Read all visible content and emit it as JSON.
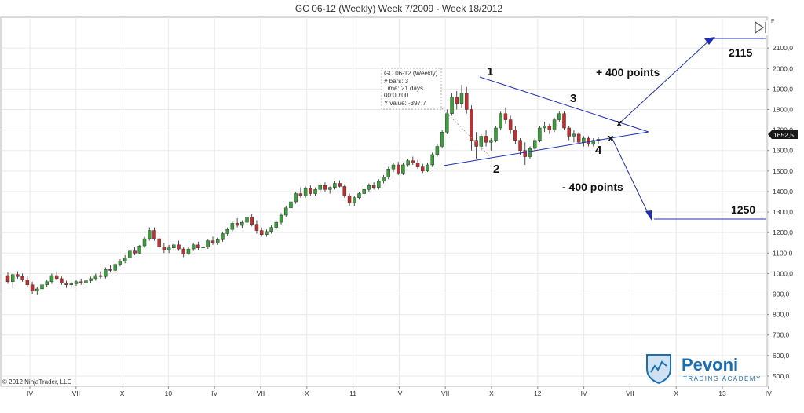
{
  "chart_data": {
    "type": "candlestick",
    "title": "GC 06-12 (Weekly)  Week 7/2009 - Week 18/2012",
    "y_axis": {
      "range": [
        450,
        2250
      ],
      "ticks": [
        "500,0",
        "600,0",
        "700,0",
        "800,0",
        "900,0",
        "1000,0",
        "1100,0",
        "1200,0",
        "1300,0",
        "1400,0",
        "1500,0",
        "1600,0",
        "1700,0",
        "1800,0",
        "1900,0",
        "2000,0",
        "2100,0"
      ],
      "tick_values": [
        500,
        600,
        700,
        800,
        900,
        1000,
        1100,
        1200,
        1300,
        1400,
        1500,
        1600,
        1700,
        1800,
        1900,
        2000,
        2100
      ]
    },
    "x_axis": {
      "tick_labels": [
        "IV",
        "VII",
        "X",
        "10",
        "IV",
        "VII",
        "X",
        "11",
        "IV",
        "VII",
        "X",
        "12",
        "IV",
        "VII",
        "X",
        "13",
        "IV"
      ]
    },
    "last_price_label": "1652,5",
    "candles_ohlc": [
      [
        990,
        1005,
        950,
        960
      ],
      [
        960,
        1000,
        930,
        995
      ],
      [
        995,
        1010,
        975,
        985
      ],
      [
        985,
        1000,
        960,
        970
      ],
      [
        970,
        985,
        935,
        945
      ],
      [
        945,
        960,
        900,
        915
      ],
      [
        915,
        935,
        895,
        925
      ],
      [
        925,
        950,
        915,
        945
      ],
      [
        945,
        970,
        935,
        960
      ],
      [
        960,
        1000,
        950,
        990
      ],
      [
        990,
        1010,
        970,
        975
      ],
      [
        975,
        985,
        945,
        955
      ],
      [
        955,
        965,
        930,
        945
      ],
      [
        945,
        960,
        935,
        950
      ],
      [
        950,
        970,
        940,
        960
      ],
      [
        960,
        975,
        945,
        955
      ],
      [
        955,
        975,
        945,
        965
      ],
      [
        965,
        985,
        955,
        975
      ],
      [
        975,
        1000,
        965,
        990
      ],
      [
        990,
        1010,
        975,
        985
      ],
      [
        985,
        1030,
        975,
        1020
      ],
      [
        1020,
        1040,
        1005,
        1015
      ],
      [
        1015,
        1050,
        1010,
        1045
      ],
      [
        1045,
        1070,
        1035,
        1060
      ],
      [
        1060,
        1090,
        1050,
        1075
      ],
      [
        1075,
        1120,
        1065,
        1110
      ],
      [
        1110,
        1130,
        1090,
        1100
      ],
      [
        1100,
        1140,
        1095,
        1135
      ],
      [
        1135,
        1180,
        1125,
        1170
      ],
      [
        1170,
        1225,
        1160,
        1210
      ],
      [
        1210,
        1225,
        1160,
        1170
      ],
      [
        1170,
        1185,
        1120,
        1130
      ],
      [
        1130,
        1150,
        1100,
        1115
      ],
      [
        1115,
        1140,
        1100,
        1125
      ],
      [
        1125,
        1150,
        1110,
        1140
      ],
      [
        1140,
        1160,
        1110,
        1120
      ],
      [
        1120,
        1130,
        1080,
        1095
      ],
      [
        1095,
        1130,
        1090,
        1120
      ],
      [
        1120,
        1150,
        1110,
        1140
      ],
      [
        1140,
        1155,
        1115,
        1125
      ],
      [
        1125,
        1140,
        1115,
        1130
      ],
      [
        1130,
        1170,
        1120,
        1160
      ],
      [
        1160,
        1180,
        1140,
        1150
      ],
      [
        1150,
        1175,
        1140,
        1165
      ],
      [
        1165,
        1205,
        1155,
        1195
      ],
      [
        1195,
        1225,
        1185,
        1215
      ],
      [
        1215,
        1255,
        1205,
        1245
      ],
      [
        1245,
        1270,
        1225,
        1235
      ],
      [
        1235,
        1260,
        1220,
        1250
      ],
      [
        1250,
        1285,
        1240,
        1275
      ],
      [
        1275,
        1290,
        1230,
        1240
      ],
      [
        1240,
        1260,
        1195,
        1210
      ],
      [
        1210,
        1225,
        1180,
        1190
      ],
      [
        1190,
        1215,
        1180,
        1205
      ],
      [
        1205,
        1235,
        1195,
        1225
      ],
      [
        1225,
        1260,
        1215,
        1250
      ],
      [
        1250,
        1295,
        1240,
        1285
      ],
      [
        1285,
        1330,
        1275,
        1320
      ],
      [
        1320,
        1360,
        1310,
        1350
      ],
      [
        1350,
        1400,
        1340,
        1390
      ],
      [
        1390,
        1420,
        1370,
        1380
      ],
      [
        1380,
        1425,
        1370,
        1415
      ],
      [
        1415,
        1430,
        1380,
        1390
      ],
      [
        1390,
        1420,
        1380,
        1410
      ],
      [
        1410,
        1440,
        1395,
        1430
      ],
      [
        1430,
        1445,
        1400,
        1410
      ],
      [
        1410,
        1425,
        1390,
        1420
      ],
      [
        1420,
        1450,
        1410,
        1440
      ],
      [
        1440,
        1455,
        1420,
        1425
      ],
      [
        1425,
        1435,
        1370,
        1380
      ],
      [
        1380,
        1390,
        1330,
        1345
      ],
      [
        1345,
        1380,
        1330,
        1370
      ],
      [
        1370,
        1400,
        1360,
        1390
      ],
      [
        1390,
        1420,
        1380,
        1410
      ],
      [
        1410,
        1440,
        1400,
        1430
      ],
      [
        1430,
        1445,
        1410,
        1420
      ],
      [
        1420,
        1460,
        1410,
        1450
      ],
      [
        1450,
        1480,
        1440,
        1470
      ],
      [
        1470,
        1520,
        1460,
        1510
      ],
      [
        1510,
        1540,
        1495,
        1530
      ],
      [
        1530,
        1545,
        1480,
        1490
      ],
      [
        1490,
        1540,
        1480,
        1530
      ],
      [
        1530,
        1560,
        1520,
        1550
      ],
      [
        1550,
        1570,
        1530,
        1540
      ],
      [
        1540,
        1555,
        1510,
        1520
      ],
      [
        1520,
        1535,
        1490,
        1500
      ],
      [
        1500,
        1540,
        1495,
        1530
      ],
      [
        1530,
        1590,
        1520,
        1580
      ],
      [
        1580,
        1630,
        1570,
        1620
      ],
      [
        1620,
        1700,
        1610,
        1690
      ],
      [
        1690,
        1800,
        1680,
        1780
      ],
      [
        1780,
        1880,
        1770,
        1860
      ],
      [
        1860,
        1890,
        1800,
        1830
      ],
      [
        1830,
        1920,
        1810,
        1880
      ],
      [
        1880,
        1910,
        1780,
        1800
      ],
      [
        1800,
        1820,
        1600,
        1650
      ],
      [
        1650,
        1690,
        1560,
        1620
      ],
      [
        1620,
        1680,
        1600,
        1670
      ],
      [
        1670,
        1700,
        1620,
        1640
      ],
      [
        1640,
        1660,
        1600,
        1650
      ],
      [
        1650,
        1720,
        1640,
        1710
      ],
      [
        1710,
        1790,
        1700,
        1780
      ],
      [
        1780,
        1810,
        1730,
        1750
      ],
      [
        1750,
        1770,
        1680,
        1700
      ],
      [
        1700,
        1720,
        1630,
        1650
      ],
      [
        1650,
        1660,
        1580,
        1600
      ],
      [
        1600,
        1640,
        1530,
        1570
      ],
      [
        1570,
        1620,
        1560,
        1610
      ],
      [
        1610,
        1660,
        1600,
        1650
      ],
      [
        1650,
        1720,
        1640,
        1710
      ],
      [
        1710,
        1740,
        1690,
        1720
      ],
      [
        1720,
        1730,
        1680,
        1700
      ],
      [
        1700,
        1760,
        1690,
        1750
      ],
      [
        1750,
        1790,
        1740,
        1780
      ],
      [
        1780,
        1790,
        1700,
        1710
      ],
      [
        1710,
        1720,
        1650,
        1670
      ],
      [
        1670,
        1700,
        1640,
        1680
      ],
      [
        1680,
        1690,
        1630,
        1640
      ],
      [
        1640,
        1670,
        1620,
        1660
      ],
      [
        1660,
        1670,
        1620,
        1630
      ],
      [
        1630,
        1660,
        1620,
        1650
      ],
      [
        1650,
        1665,
        1630,
        1655
      ]
    ]
  },
  "tooltip": {
    "lines": [
      "GC 06-12 (Weekly)",
      "# bars:  3",
      "Time:   21 days",
      "           00:00:00",
      "Y value: -397,7"
    ]
  },
  "annotations": {
    "point1": "1",
    "point2": "2",
    "point3": "3",
    "point4": "4",
    "breakout_mark": "x",
    "breakdown_mark": "x",
    "up_target_text": "+ 400 points",
    "down_target_text": "- 400 points",
    "up_target_value": "2115",
    "down_target_value": "1250"
  },
  "copyright": "© 2012 NinjaTrader, LLC",
  "logo": {
    "name": "Pevoni",
    "tagline": "TRADING ACADEMY"
  },
  "colors": {
    "up_candle": "#3d9e3d",
    "down_candle": "#c03030",
    "wick": "#222222",
    "trendline": "#1f2fb0",
    "grid": "#eaeaea",
    "logo_blue": "#1a6fb3"
  }
}
